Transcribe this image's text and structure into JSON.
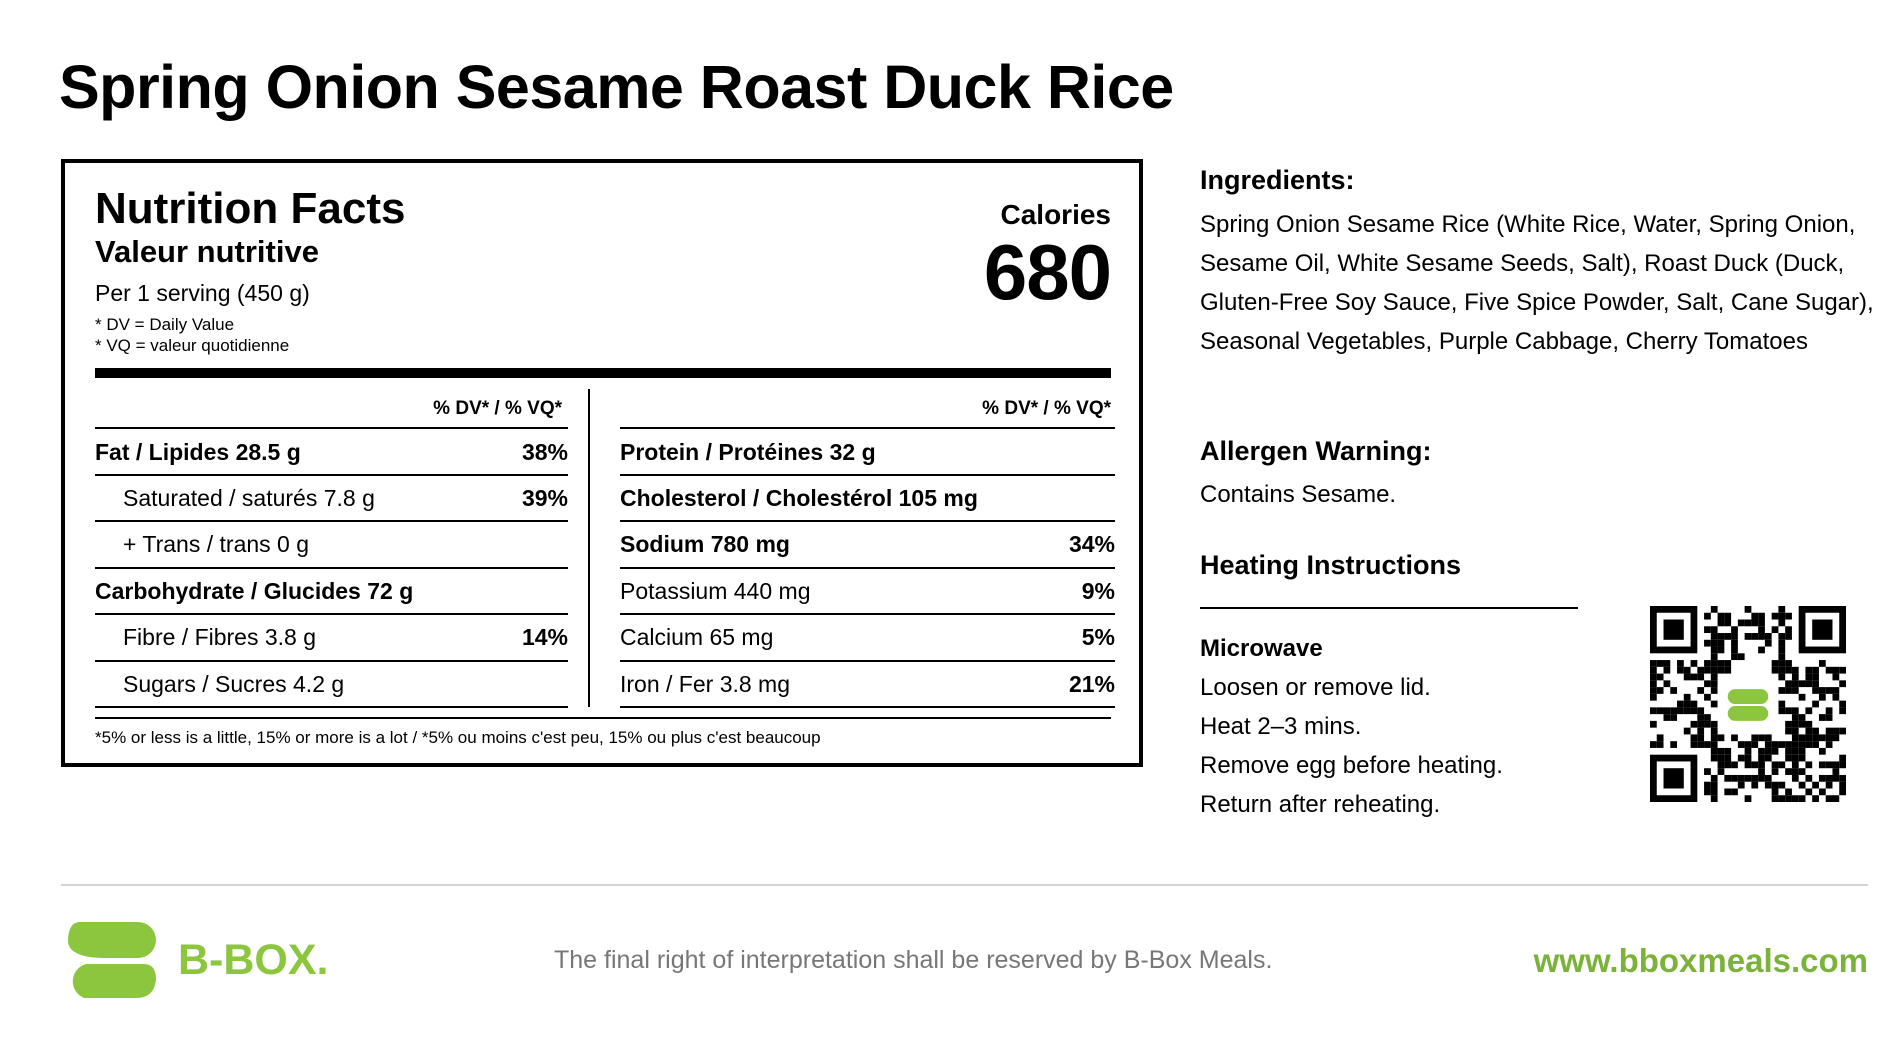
{
  "title": "Spring Onion Sesame Roast Duck Rice",
  "nutrition": {
    "heading": "Nutrition Facts",
    "heading_fr": "Valeur nutritive",
    "serving": "Per 1 serving (450 g)",
    "notes": [
      "* DV = Daily Value",
      "* VQ = valeur quotidienne"
    ],
    "calories_label": "Calories",
    "calories": 680,
    "dv_header": "% DV* / % VQ*",
    "left_rows": [
      {
        "label": "Fat / Lipides 28.5 g",
        "dv": "38%"
      },
      {
        "label": "Saturated / saturés 7.8 g",
        "dv": "39%"
      },
      {
        "label": "+ Trans / trans 0 g"
      },
      {
        "label": "Carbohydrate / Glucides 72 g"
      },
      {
        "label": "Fibre / Fibres 3.8 g",
        "dv": "14%"
      },
      {
        "label": "Sugars / Sucres 4.2 g"
      }
    ],
    "right_rows": [
      {
        "label": "Protein / Protéines 32 g"
      },
      {
        "label": "Cholesterol / Cholestérol 105 mg"
      },
      {
        "label": "Sodium 780 mg",
        "dv": "34%"
      },
      {
        "label": "Potassium 440 mg",
        "dv": "9%"
      },
      {
        "label": "Calcium 65 mg",
        "dv": "5%"
      },
      {
        "label": "Iron / Fer 3.8 mg",
        "dv": "21%"
      }
    ],
    "footnote": "*5% or less is a little, 15% or more is a lot / *5% ou moins c'est peu, 15% ou plus c'est beaucoup"
  },
  "ingredients": {
    "heading": "Ingredients:",
    "text": "Spring Onion Sesame Rice (White Rice, Water, Spring Onion, Sesame Oil, White Sesame Seeds, Salt), Roast Duck (Duck, Gluten-Free Soy Sauce, Five Spice Powder, Salt, Cane Sugar), Seasonal Vegetables, Purple Cabbage, Cherry Tomatoes"
  },
  "allergen": {
    "heading": "Allergen Warning:",
    "text": "Contains Sesame."
  },
  "heating": {
    "heading": "Heating Instructions",
    "method": "Microwave",
    "steps": [
      "Loosen or remove lid.",
      "Heat 2–3 mins.",
      "Remove egg before heating.",
      "Return after reheating."
    ]
  },
  "footer": {
    "brand": "B-BOX.",
    "disclaimer": "The final right of interpretation shall be reserved by B-Box Meals.",
    "website": "www.bboxmeals.com"
  }
}
